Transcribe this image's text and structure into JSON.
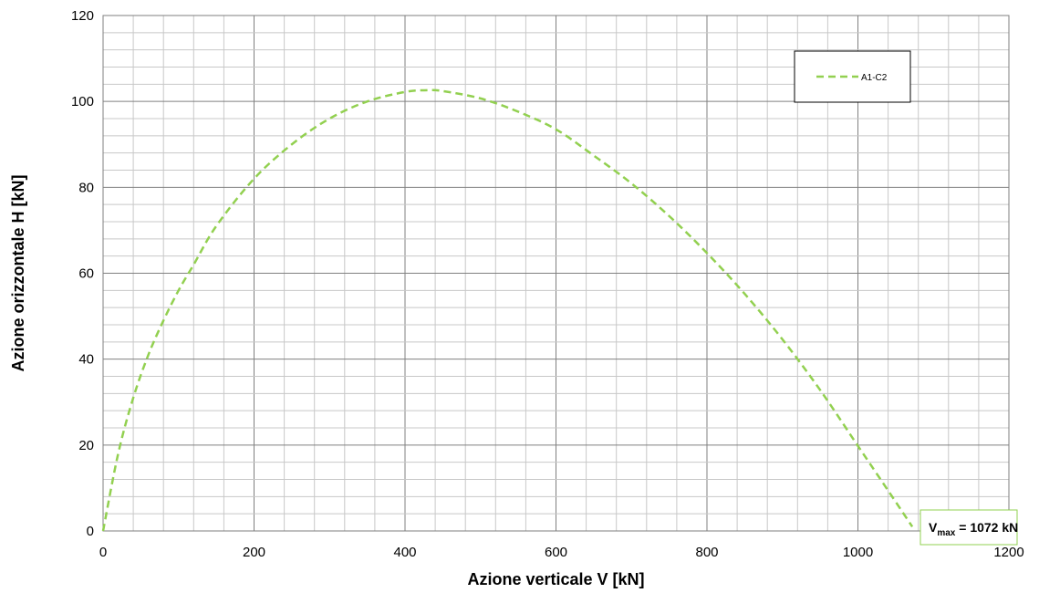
{
  "chart_data": {
    "type": "line",
    "xlabel": "Azione verticale V [kN]",
    "ylabel": "Azione orizzontale H [kN]",
    "xlim": [
      0,
      1200
    ],
    "ylim": [
      0,
      120
    ],
    "x_ticks": [
      "0",
      "200",
      "400",
      "600",
      "800",
      "1000",
      "1200"
    ],
    "y_ticks": [
      "0",
      "20",
      "40",
      "60",
      "80",
      "100",
      "120"
    ],
    "grid": true,
    "legend_position": "top-right",
    "series": [
      {
        "name": "A1-C2",
        "color": "#92d050",
        "style": "dashed",
        "x": [
          0,
          20,
          40,
          60,
          80,
          100,
          120,
          150,
          200,
          250,
          300,
          350,
          400,
          430,
          450,
          500,
          550,
          600,
          650,
          700,
          750,
          800,
          850,
          900,
          950,
          1000,
          1040,
          1072
        ],
        "y": [
          0,
          18,
          31,
          41,
          49,
          56,
          62,
          71,
          82,
          90,
          96,
          100,
          102.2,
          102.6,
          102.4,
          100.7,
          97.6,
          93.5,
          87.4,
          80.9,
          73.3,
          64.7,
          55.2,
          44.6,
          32.8,
          19.8,
          9.4,
          1
        ]
      }
    ],
    "annotation": {
      "main": "V",
      "subscript": "max",
      "value_text": " = 1072  kN"
    }
  }
}
